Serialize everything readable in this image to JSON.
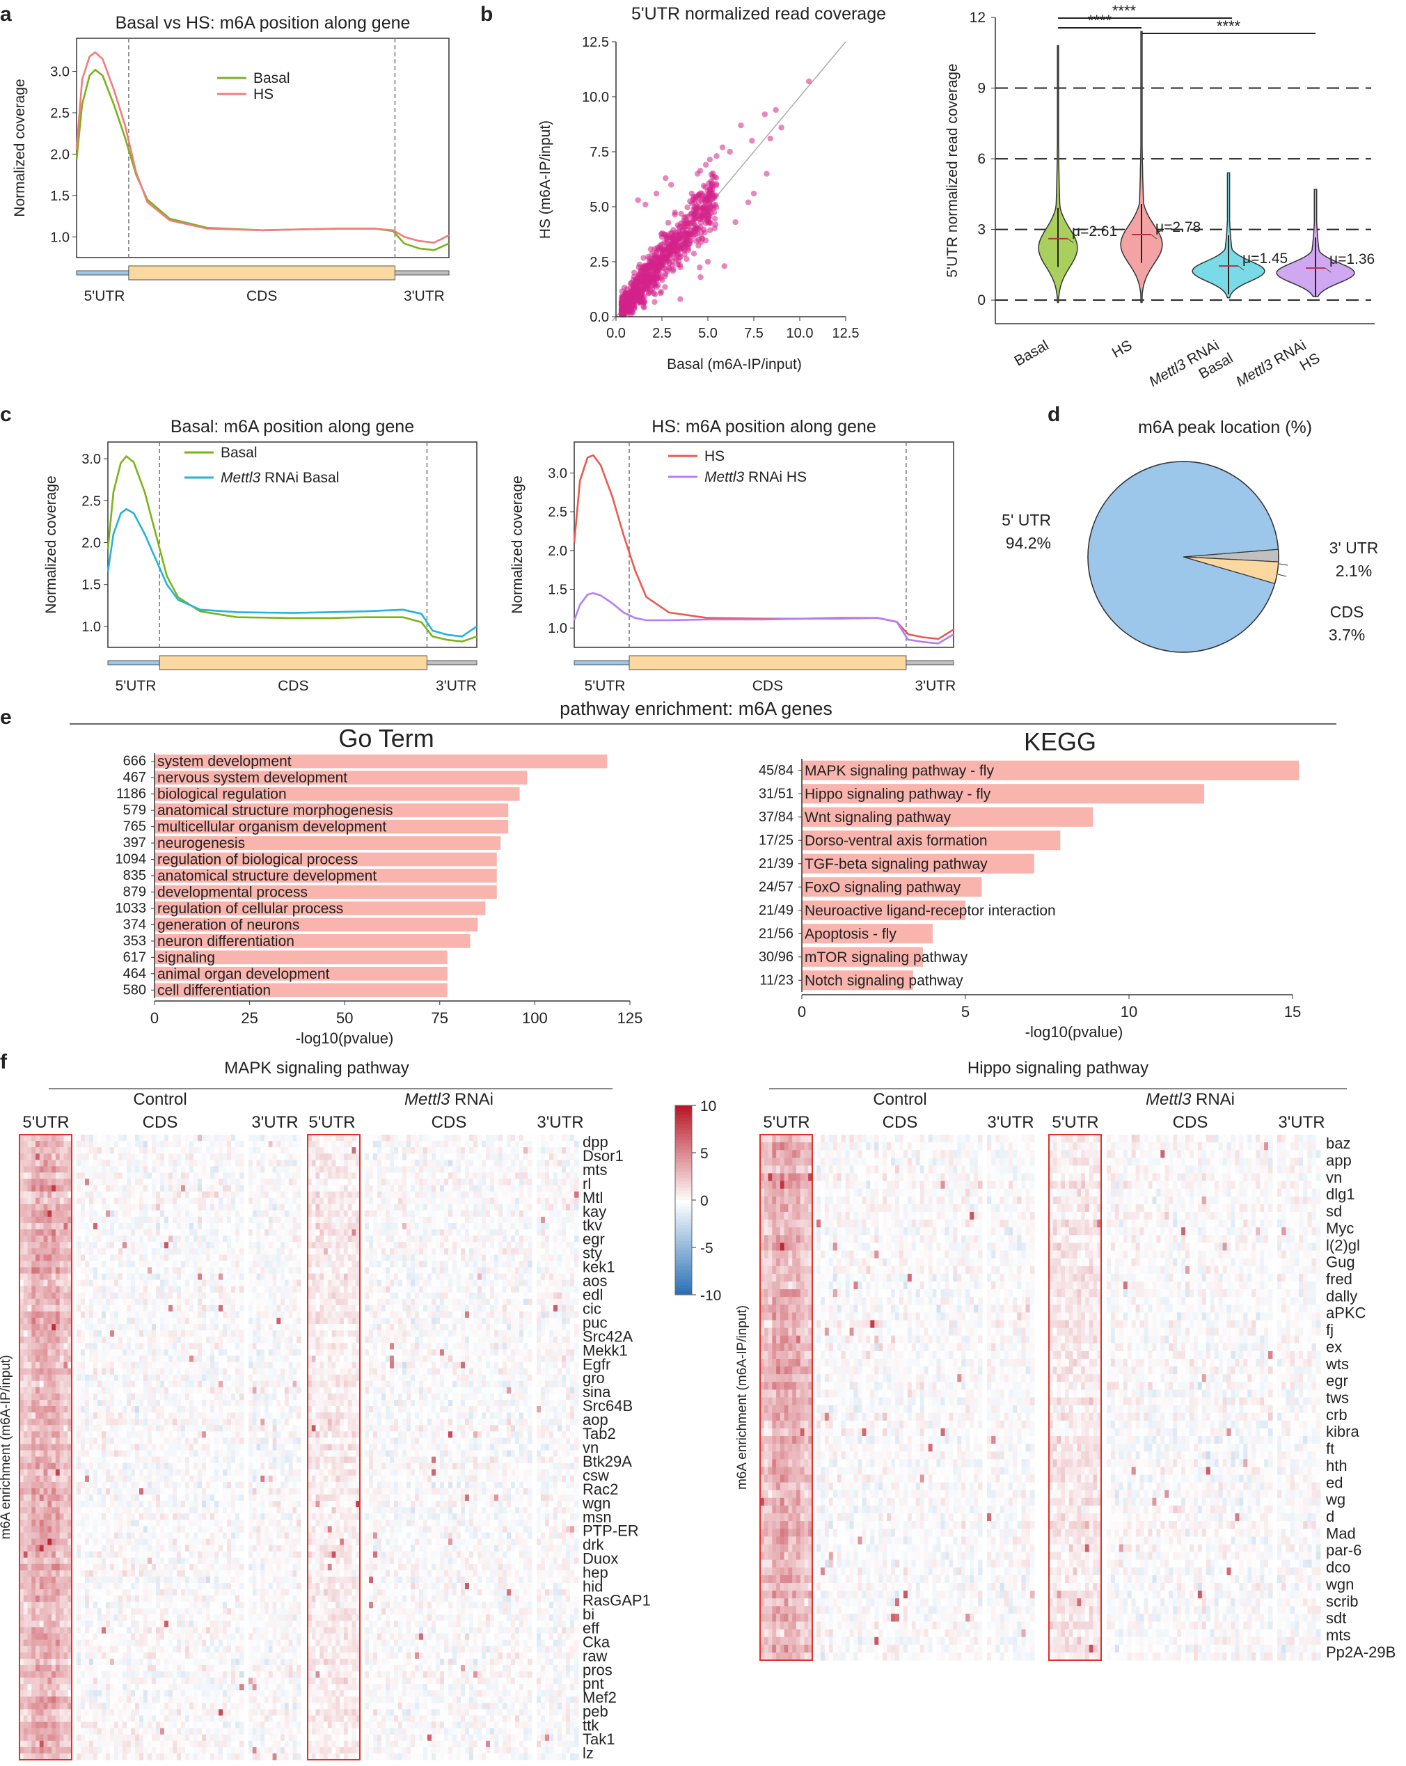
{
  "colors": {
    "basal": "#7ab317",
    "hs": "#f07c7c",
    "hs_dark": "#e8594f",
    "rnai_basal": "#22b3d6",
    "rnai_hs": "#b77cf0",
    "utr5": "#9cc7ea",
    "cds": "#fbd8a0",
    "utr3": "#c0c0c0",
    "scatter": "#d4238a",
    "violin_basal": "#a9cf5c",
    "violin_hs": "#f3a3a3",
    "violin_rnai_basal": "#78dbe6",
    "violin_rnai_hs": "#d0a8f2",
    "bar": "#f8b4ad"
  },
  "panels": {
    "a": "a",
    "b": "b",
    "c": "c",
    "d": "d",
    "e": "e",
    "f": "f"
  },
  "chart_data": [
    {
      "id": "a",
      "type": "line",
      "title": "Basal vs HS: m6A position along gene",
      "ylabel": "Normalized coverage",
      "ylim": [
        0.75,
        3.4
      ],
      "yticks": [
        1.0,
        1.5,
        2.0,
        2.5,
        3.0
      ],
      "regions": [
        "5'UTR",
        "CDS",
        "3'UTR"
      ],
      "series": [
        {
          "name": "Basal",
          "color_key": "basal",
          "points": [
            [
              0,
              1.93
            ],
            [
              0.015,
              2.6
            ],
            [
              0.035,
              2.95
            ],
            [
              0.05,
              3.02
            ],
            [
              0.07,
              2.95
            ],
            [
              0.1,
              2.6
            ],
            [
              0.13,
              2.2
            ],
            [
              0.16,
              1.75
            ],
            [
              0.19,
              1.45
            ],
            [
              0.25,
              1.22
            ],
            [
              0.35,
              1.11
            ],
            [
              0.5,
              1.08
            ],
            [
              0.6,
              1.09
            ],
            [
              0.7,
              1.1
            ],
            [
              0.8,
              1.1
            ],
            [
              0.85,
              1.07
            ],
            [
              0.88,
              0.92
            ],
            [
              0.92,
              0.86
            ],
            [
              0.96,
              0.84
            ],
            [
              1.0,
              0.92
            ]
          ]
        },
        {
          "name": "HS",
          "color_key": "hs",
          "points": [
            [
              0,
              2.05
            ],
            [
              0.015,
              2.9
            ],
            [
              0.035,
              3.18
            ],
            [
              0.05,
              3.23
            ],
            [
              0.07,
              3.15
            ],
            [
              0.1,
              2.78
            ],
            [
              0.13,
              2.35
            ],
            [
              0.16,
              1.78
            ],
            [
              0.19,
              1.42
            ],
            [
              0.25,
              1.2
            ],
            [
              0.35,
              1.1
            ],
            [
              0.5,
              1.08
            ],
            [
              0.6,
              1.09
            ],
            [
              0.7,
              1.1
            ],
            [
              0.8,
              1.1
            ],
            [
              0.85,
              1.08
            ],
            [
              0.88,
              1.0
            ],
            [
              0.92,
              0.95
            ],
            [
              0.96,
              0.93
            ],
            [
              1.0,
              1.02
            ]
          ]
        }
      ]
    },
    {
      "id": "b_scatter",
      "type": "scatter",
      "title": "5'UTR normalized read coverage",
      "xlabel": "Basal (m6A-IP/input)",
      "ylabel": "HS  (m6A-IP/input)",
      "xlim": [
        0,
        12.5
      ],
      "ylim": [
        0,
        12.5
      ],
      "ticks": [
        "0.0",
        "2.5",
        "5.0",
        "7.5",
        "10.0",
        "12.5"
      ],
      "outliers": [
        [
          10.5,
          10.7
        ],
        [
          8.7,
          9.4
        ],
        [
          8.1,
          9.2
        ],
        [
          8.4,
          8.1
        ],
        [
          9.0,
          8.6
        ],
        [
          6.8,
          8.7
        ],
        [
          7.4,
          8.0
        ],
        [
          5.8,
          7.7
        ],
        [
          6.2,
          7.5
        ],
        [
          1.2,
          5.3
        ],
        [
          1.6,
          5.1
        ],
        [
          2.2,
          5.6
        ],
        [
          2.7,
          6.3
        ],
        [
          3.0,
          6.0
        ],
        [
          7.5,
          5.6
        ],
        [
          8.2,
          6.5
        ],
        [
          7.2,
          5.2
        ],
        [
          6.5,
          4.3
        ],
        [
          5.0,
          2.5
        ],
        [
          4.6,
          1.8
        ],
        [
          5.9,
          2.3
        ],
        [
          3.5,
          0.8
        ]
      ]
    },
    {
      "id": "b_violin",
      "type": "violin",
      "ylabel": "5'UTR normalized read coverage",
      "ylim": [
        -1,
        12
      ],
      "yticks": [
        0,
        3,
        6,
        9,
        12
      ],
      "groups": [
        {
          "label": "Basal",
          "color_key": "violin_basal",
          "mean": 2.61,
          "mean_label": "μ=2.61",
          "max": 10.8,
          "min": -0.1
        },
        {
          "label": "HS",
          "color_key": "violin_hs",
          "mean": 2.78,
          "mean_label": "μ=2.78",
          "max": 11.4,
          "min": -0.1
        },
        {
          "label": "Mettl3 RNAi Basal",
          "color_key": "violin_rnai_basal",
          "mean": 1.45,
          "mean_label": "μ=1.45",
          "max": 5.4,
          "min": 0.1
        },
        {
          "label": "Mettl3 RNAi HS",
          "color_key": "violin_rnai_hs",
          "mean": 1.36,
          "mean_label": "μ=1.36",
          "max": 4.7,
          "min": 0.15
        }
      ],
      "significance": [
        "****",
        "****",
        "****"
      ]
    },
    {
      "id": "c_basal",
      "type": "line",
      "title": "Basal: m6A position along gene",
      "ylabel": "Normalized coverage",
      "ylim": [
        0.75,
        3.2
      ],
      "yticks": [
        1.0,
        1.5,
        2.0,
        2.5,
        3.0
      ],
      "regions": [
        "5'UTR",
        "CDS",
        "3'UTR"
      ],
      "series": [
        {
          "name": "Basal",
          "color_key": "basal",
          "points": [
            [
              0,
              1.92
            ],
            [
              0.015,
              2.6
            ],
            [
              0.035,
              2.95
            ],
            [
              0.05,
              3.03
            ],
            [
              0.07,
              2.96
            ],
            [
              0.1,
              2.6
            ],
            [
              0.13,
              2.1
            ],
            [
              0.16,
              1.6
            ],
            [
              0.19,
              1.35
            ],
            [
              0.25,
              1.18
            ],
            [
              0.35,
              1.11
            ],
            [
              0.5,
              1.1
            ],
            [
              0.6,
              1.1
            ],
            [
              0.7,
              1.11
            ],
            [
              0.8,
              1.11
            ],
            [
              0.85,
              1.05
            ],
            [
              0.88,
              0.88
            ],
            [
              0.92,
              0.84
            ],
            [
              0.96,
              0.82
            ],
            [
              1.0,
              0.88
            ]
          ]
        },
        {
          "name": "Mettl3 RNAi Basal",
          "color_key": "rnai_basal",
          "points": [
            [
              0,
              1.65
            ],
            [
              0.015,
              2.1
            ],
            [
              0.035,
              2.35
            ],
            [
              0.05,
              2.4
            ],
            [
              0.07,
              2.35
            ],
            [
              0.1,
              2.1
            ],
            [
              0.13,
              1.8
            ],
            [
              0.16,
              1.5
            ],
            [
              0.19,
              1.32
            ],
            [
              0.25,
              1.2
            ],
            [
              0.35,
              1.17
            ],
            [
              0.5,
              1.16
            ],
            [
              0.6,
              1.17
            ],
            [
              0.7,
              1.18
            ],
            [
              0.8,
              1.2
            ],
            [
              0.85,
              1.15
            ],
            [
              0.88,
              0.95
            ],
            [
              0.92,
              0.9
            ],
            [
              0.96,
              0.88
            ],
            [
              1.0,
              1.0
            ]
          ]
        }
      ]
    },
    {
      "id": "c_hs",
      "type": "line",
      "title": "HS: m6A position along gene",
      "ylabel": "Normalized coverage",
      "ylim": [
        0.75,
        3.4
      ],
      "yticks": [
        1.0,
        1.5,
        2.0,
        2.5,
        3.0
      ],
      "regions": [
        "5'UTR",
        "CDS",
        "3'UTR"
      ],
      "series": [
        {
          "name": "HS",
          "color_key": "hs_dark",
          "points": [
            [
              0,
              2.1
            ],
            [
              0.015,
              2.9
            ],
            [
              0.035,
              3.2
            ],
            [
              0.05,
              3.23
            ],
            [
              0.07,
              3.1
            ],
            [
              0.1,
              2.7
            ],
            [
              0.13,
              2.2
            ],
            [
              0.16,
              1.75
            ],
            [
              0.19,
              1.4
            ],
            [
              0.25,
              1.2
            ],
            [
              0.35,
              1.13
            ],
            [
              0.5,
              1.12
            ],
            [
              0.6,
              1.12
            ],
            [
              0.7,
              1.13
            ],
            [
              0.8,
              1.13
            ],
            [
              0.85,
              1.08
            ],
            [
              0.88,
              0.92
            ],
            [
              0.92,
              0.88
            ],
            [
              0.96,
              0.86
            ],
            [
              1.0,
              0.98
            ]
          ]
        },
        {
          "name": "Mettl3 RNAi HS",
          "color_key": "rnai_hs",
          "points": [
            [
              0,
              1.1
            ],
            [
              0.015,
              1.3
            ],
            [
              0.035,
              1.43
            ],
            [
              0.05,
              1.45
            ],
            [
              0.07,
              1.42
            ],
            [
              0.1,
              1.32
            ],
            [
              0.13,
              1.2
            ],
            [
              0.16,
              1.13
            ],
            [
              0.19,
              1.1
            ],
            [
              0.25,
              1.1
            ],
            [
              0.35,
              1.11
            ],
            [
              0.5,
              1.11
            ],
            [
              0.6,
              1.12
            ],
            [
              0.7,
              1.12
            ],
            [
              0.8,
              1.13
            ],
            [
              0.85,
              1.08
            ],
            [
              0.88,
              0.85
            ],
            [
              0.92,
              0.82
            ],
            [
              0.96,
              0.8
            ],
            [
              1.0,
              0.92
            ]
          ]
        }
      ]
    },
    {
      "id": "d",
      "type": "pie",
      "title": "m6A peak location (%)",
      "slices": [
        {
          "label": "5' UTR",
          "value": 94.2,
          "pct": "94.2%",
          "color_key": "utr5"
        },
        {
          "label": "3' UTR",
          "value": 2.1,
          "pct": "2.1%",
          "color_key": "utr3"
        },
        {
          "label": "CDS",
          "value": 3.7,
          "pct": "3.7%",
          "color_key": "cds"
        }
      ]
    },
    {
      "id": "e_go",
      "type": "bar",
      "title": "Go Term",
      "xlabel": "-log10(pvalue)",
      "xlim": [
        0,
        125
      ],
      "xticks": [
        0,
        25,
        50,
        75,
        100,
        125
      ],
      "categories": [
        "system development",
        "nervous system development",
        "biological regulation",
        "anatomical structure morphogenesis",
        "multicellular organism development",
        "neurogenesis",
        "regulation of biological process",
        "anatomical structure development",
        "developmental process",
        "regulation of cellular process",
        "generation of neurons",
        "neuron differentiation",
        "signaling",
        "animal organ development",
        "cell differentiation"
      ],
      "counts": [
        "666",
        "467",
        "1186",
        "579",
        "765",
        "397",
        "1094",
        "835",
        "879",
        "1033",
        "374",
        "353",
        "617",
        "464",
        "580"
      ],
      "values": [
        119,
        98,
        96,
        93,
        93,
        91,
        90,
        90,
        90,
        87,
        85,
        83,
        77,
        77,
        77
      ]
    },
    {
      "id": "e_kegg",
      "type": "bar",
      "title": "KEGG",
      "xlabel": "-log10(pvalue)",
      "xlim": [
        0,
        15
      ],
      "xticks": [
        0,
        5,
        10,
        15
      ],
      "categories": [
        "MAPK signaling pathway - fly",
        "Hippo signaling pathway - fly",
        "Wnt signaling pathway",
        "Dorso-ventral axis formation",
        "TGF-beta signaling pathway",
        "FoxO signaling pathway",
        "Neuroactive ligand-receptor interaction",
        "Apoptosis - fly",
        "mTOR signaling pathway",
        "Notch signaling pathway"
      ],
      "counts": [
        "45/84",
        "31/51",
        "37/84",
        "17/25",
        "21/39",
        "24/57",
        "21/49",
        "21/56",
        "30/96",
        "11/23"
      ],
      "values": [
        15.2,
        12.3,
        8.9,
        7.9,
        7.1,
        5.5,
        5.0,
        4.0,
        3.7,
        3.4
      ]
    },
    {
      "id": "f_mapk",
      "type": "heatmap",
      "title": "MAPK signaling pathway",
      "conditions": [
        "Control",
        "Mettl3 RNAi"
      ],
      "regions": [
        "5'UTR",
        "CDS",
        "3'UTR"
      ],
      "ylabel": "m6A enrichment (m6A-IP/input)",
      "colorbar": [
        10,
        5,
        0,
        -5,
        -10
      ],
      "genes": [
        "dpp",
        "Dsor1",
        "mts",
        "rl",
        "Mtl",
        "kay",
        "tkv",
        "egr",
        "sty",
        "kek1",
        "aos",
        "edl",
        "cic",
        "puc",
        "Src42A",
        "Mekk1",
        "Egfr",
        "gro",
        "sina",
        "Src64B",
        "aop",
        "Tab2",
        "vn",
        "Btk29A",
        "csw",
        "Rac2",
        "wgn",
        "msn",
        "PTP-ER",
        "drk",
        "Duox",
        "hep",
        "hid",
        "RasGAP1",
        "bi",
        "eff",
        "Cka",
        "raw",
        "pros",
        "pnt",
        "Mef2",
        "peb",
        "ttk",
        "Tak1",
        "lz"
      ]
    },
    {
      "id": "f_hippo",
      "type": "heatmap",
      "title": "Hippo signaling pathway",
      "conditions": [
        "Control",
        "Mettl3 RNAi"
      ],
      "regions": [
        "5'UTR",
        "CDS",
        "3'UTR"
      ],
      "ylabel": "m6A enrichment (m6A-IP/input)",
      "genes": [
        "baz",
        "app",
        "vn",
        "dlg1",
        "sd",
        "Myc",
        "l(2)gl",
        "Gug",
        "fred",
        "dally",
        "aPKC",
        "fj",
        "ex",
        "wts",
        "egr",
        "tws",
        "crb",
        "kibra",
        "ft",
        "hth",
        "ed",
        "wg",
        "d",
        "Mad",
        "par-6",
        "dco",
        "wgn",
        "scrib",
        "sdt",
        "mts",
        "Pp2A-29B"
      ]
    }
  ],
  "e_title": "pathway enrichment: m6A genes"
}
